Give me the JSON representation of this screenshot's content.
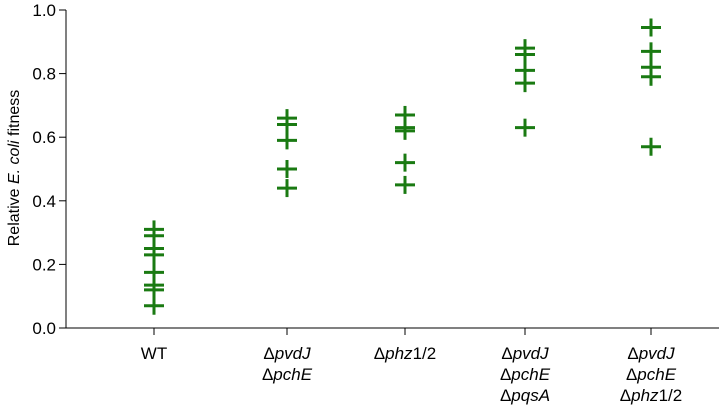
{
  "chart_data": {
    "type": "scatter",
    "title": "",
    "ylabel": {
      "prefix": "Relative ",
      "species": "E. coli",
      "suffix": " fitness"
    },
    "ylim": [
      0.0,
      1.0
    ],
    "yticks": [
      "0.0",
      "0.2",
      "0.4",
      "0.6",
      "0.8",
      "1.0"
    ],
    "grid": false,
    "marker": "plus",
    "color": "#1a7a12",
    "categories": [
      {
        "lines": [
          [
            {
              "t": "WT",
              "i": false
            }
          ]
        ]
      },
      {
        "lines": [
          [
            {
              "t": "Δ",
              "i": false
            },
            {
              "t": "pvdJ",
              "i": true
            }
          ],
          [
            {
              "t": "Δ",
              "i": false
            },
            {
              "t": "pchE",
              "i": true
            }
          ]
        ]
      },
      {
        "lines": [
          [
            {
              "t": "Δ",
              "i": false
            },
            {
              "t": "phz",
              "i": true
            },
            {
              "t": "1/2",
              "i": false
            }
          ]
        ]
      },
      {
        "lines": [
          [
            {
              "t": "Δ",
              "i": false
            },
            {
              "t": "pvdJ",
              "i": true
            }
          ],
          [
            {
              "t": "Δ",
              "i": false
            },
            {
              "t": "pchE",
              "i": true
            }
          ],
          [
            {
              "t": "Δ",
              "i": false
            },
            {
              "t": "pqsA",
              "i": true
            }
          ]
        ]
      },
      {
        "lines": [
          [
            {
              "t": "Δ",
              "i": false
            },
            {
              "t": "pvdJ",
              "i": true
            }
          ],
          [
            {
              "t": "Δ",
              "i": false
            },
            {
              "t": "pchE",
              "i": true
            }
          ],
          [
            {
              "t": "Δ",
              "i": false
            },
            {
              "t": "phz",
              "i": true
            },
            {
              "t": "1/2",
              "i": false
            }
          ]
        ]
      }
    ],
    "values": [
      [
        0.31,
        0.29,
        0.25,
        0.23,
        0.175,
        0.135,
        0.12,
        0.07
      ],
      [
        0.66,
        0.64,
        0.59,
        0.5,
        0.44
      ],
      [
        0.67,
        0.63,
        0.62,
        0.52,
        0.45
      ],
      [
        0.88,
        0.86,
        0.81,
        0.77,
        0.63
      ],
      [
        0.945,
        0.87,
        0.82,
        0.79,
        0.57
      ]
    ]
  }
}
